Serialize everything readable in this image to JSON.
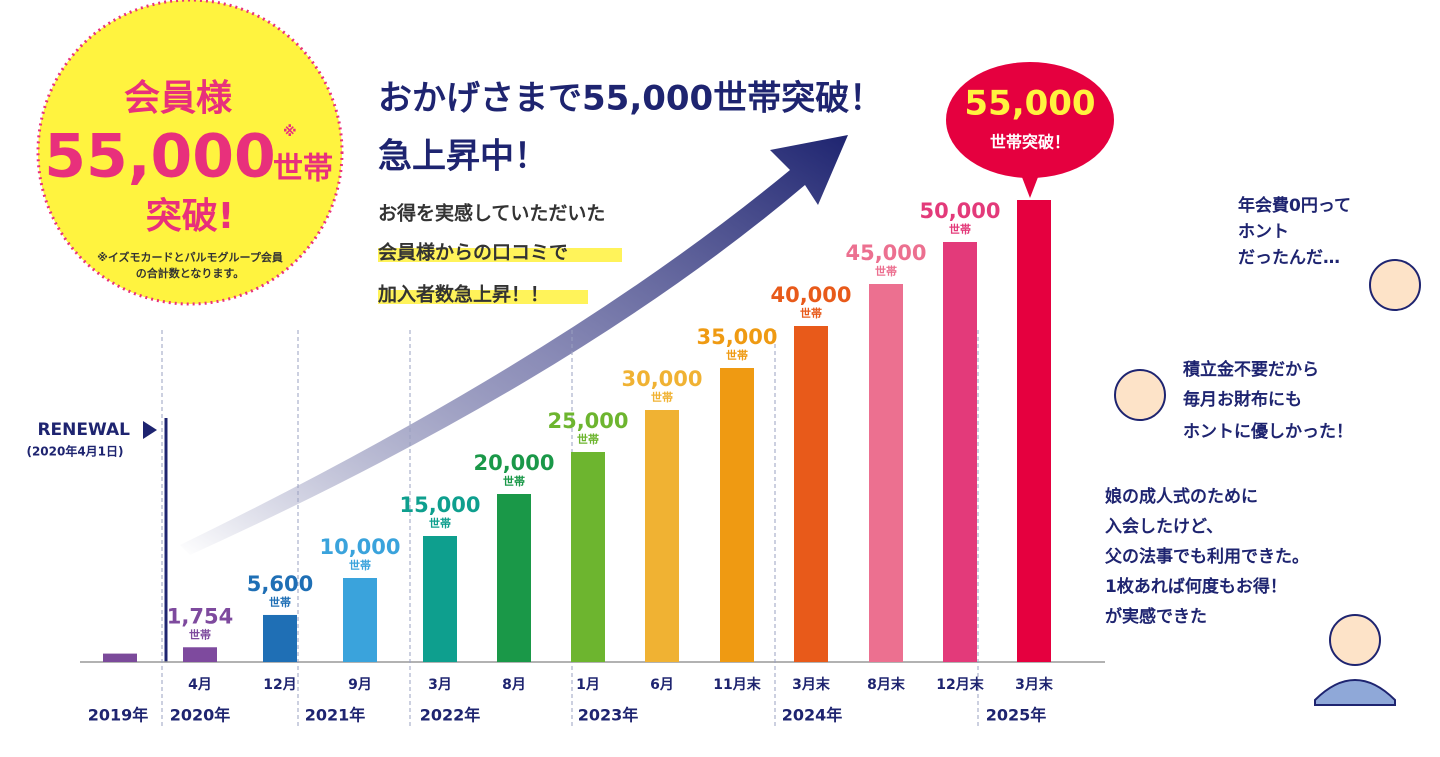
{
  "badge": {
    "line1": "会員様",
    "number": "55,000",
    "mark": "※",
    "unit": "世帯",
    "line3": "突破!",
    "note": [
      "※イズモカードとパルモグループ会員",
      "の合計数となります。"
    ]
  },
  "headline": [
    "おかげさまで55,000世帯突破！",
    "急上昇中！"
  ],
  "subtext": [
    "お得を実感していただいた",
    "会員様からの口コミで",
    "加入者数急上昇！！"
  ],
  "renewal": {
    "label": "RENEWAL",
    "date": "(2020年4月1日)"
  },
  "chart_data": {
    "type": "bar",
    "categories": [
      null,
      "4月",
      "12月",
      "9月",
      "3月",
      "8月",
      "1月",
      "6月",
      "11月末",
      "3月末",
      "8月末",
      "12月末",
      "3月末"
    ],
    "values": [
      1000,
      1754,
      5600,
      10000,
      15000,
      20000,
      25000,
      30000,
      35000,
      40000,
      45000,
      50000,
      55000
    ],
    "value_labels": [
      null,
      "1,754",
      "5,600",
      "10,000",
      "15,000",
      "20,000",
      "25,000",
      "30,000",
      "35,000",
      "40,000",
      "45,000",
      "50,000",
      "55,000"
    ],
    "unit": "世帯",
    "highlight_text": "世帯突破！",
    "colors": [
      "#7b4a9a",
      "#7e4a9e",
      "#1f6fb5",
      "#3aa3dc",
      "#0e9f8e",
      "#1a9848",
      "#6db52f",
      "#f0b233",
      "#ef9a12",
      "#e85a1a",
      "#ec7090",
      "#e33a7a",
      "#e5003f"
    ],
    "years": [
      "2019年",
      "2020年",
      "2021年",
      "2022年",
      "2023年",
      "2024年",
      "2025年"
    ],
    "ylim": [
      0,
      55000
    ]
  },
  "comments": [
    [
      "年会費0円って",
      "ホント",
      "だったんだ…"
    ],
    [
      "積立金不要だから",
      "毎月お財布にも",
      "ホントに優しかった！"
    ],
    [
      "娘の成人式のために",
      "入会したけど、",
      "父の法事でも利用できた。",
      "1枚あれば何度もお得！",
      "が実感できた"
    ]
  ]
}
